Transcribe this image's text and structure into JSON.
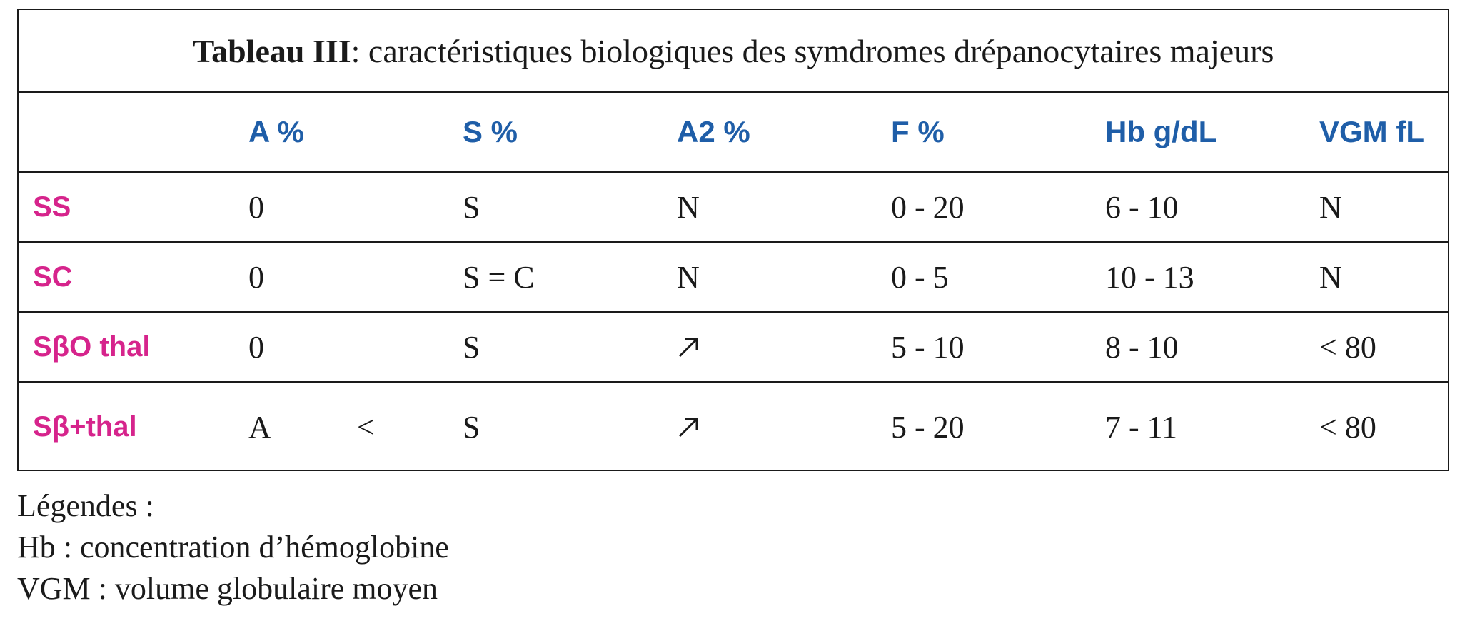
{
  "caption": {
    "label": "Tableau III",
    "text": " : caractéristiques biologiques des symdromes drépanocytaires majeurs"
  },
  "columns": [
    "A %",
    "S %",
    "A2 %",
    "F %",
    "Hb g/dL",
    "VGM fL"
  ],
  "rows": [
    {
      "label": "SS",
      "a": "0",
      "a_sign": "",
      "s": "S",
      "a2": "N",
      "a2_icon": "",
      "f": "0 - 20",
      "hb": "6 - 10",
      "vgm": "N"
    },
    {
      "label": "SC",
      "a": "0",
      "a_sign": "",
      "s": "S = C",
      "a2": "N",
      "a2_icon": "",
      "f": "0 - 5",
      "hb": "10 - 13",
      "vgm": "N"
    },
    {
      "label": "SβO thal",
      "a": "0",
      "a_sign": "",
      "s": "S",
      "a2": "",
      "a2_icon": "increase-arrow-icon",
      "f": "5 - 10",
      "hb": "8 - 10",
      "vgm": "< 80"
    },
    {
      "label": "Sβ+thal",
      "a": "A",
      "a_sign": "<",
      "s": "S",
      "a2": "",
      "a2_icon": "increase-arrow-icon",
      "f": "5 - 20",
      "hb": "7 - 11",
      "vgm": "< 80"
    }
  ],
  "legend": {
    "title": "Légendes :",
    "items": [
      "Hb : concentration d’hémoglobine",
      "VGM : volume globulaire moyen"
    ]
  },
  "colors": {
    "header": "#1f5ea8",
    "row_label": "#d6248c",
    "text": "#1a1a1a"
  }
}
